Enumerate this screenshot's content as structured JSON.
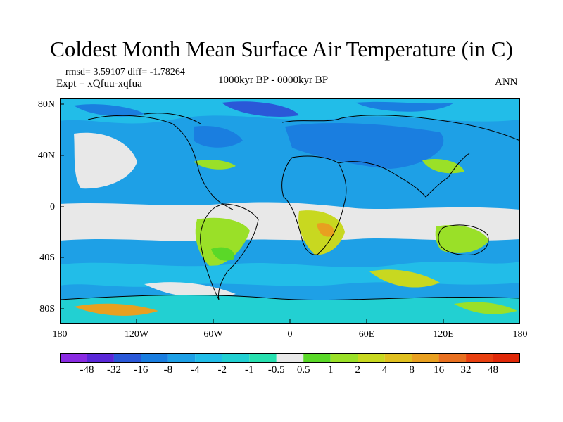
{
  "title": "Coldest Month Mean Surface Air Temperature (in C)",
  "stats_line": "rmsd= 3.59107 diff= -1.78264",
  "experiment": "Expt = xQfuu-xqfua",
  "period": "1000kyr BP - 0000kyr BP",
  "season": "ANN",
  "latitude_labels": [
    "80N",
    "40N",
    "0",
    "40S",
    "80S"
  ],
  "longitude_labels": [
    "180",
    "120W",
    "60W",
    "0",
    "60E",
    "120E",
    "180"
  ],
  "colorbar": {
    "tick_labels": [
      "-48",
      "-32",
      "-16",
      "-8",
      "-4",
      "-2",
      "-1",
      "-0.5",
      "0.5",
      "1",
      "2",
      "4",
      "8",
      "16",
      "32",
      "48"
    ],
    "colors": [
      "#8a2be2",
      "#5a28d8",
      "#2a58d8",
      "#1a7ee0",
      "#1ea0e6",
      "#22bde8",
      "#22d0d2",
      "#28e0b0",
      "#e8e8e8",
      "#5ad828",
      "#9ae028",
      "#c8d820",
      "#e0c020",
      "#e8a020",
      "#e87020",
      "#e84010",
      "#e02808"
    ]
  },
  "map_colors": {
    "ocean_base": "#1ea0e6",
    "land_outline": "#000000"
  }
}
